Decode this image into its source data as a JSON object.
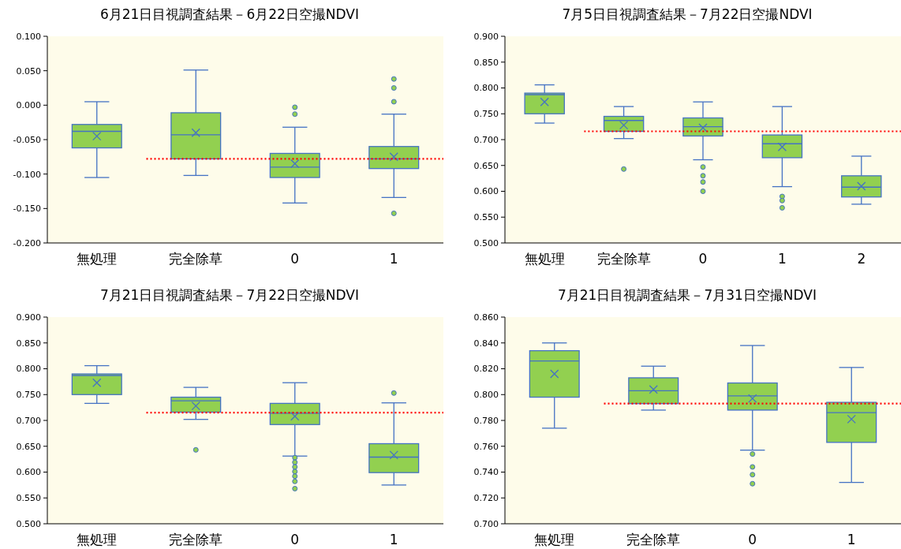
{
  "chart_data": [
    {
      "type": "box",
      "title": "6月21日目視調査結果－6月22日空撮NDVI",
      "categories": [
        "無処理",
        "完全除草",
        "0",
        "1"
      ],
      "ylim": [
        -0.2,
        0.1
      ],
      "yticks": [
        {
          "value": -0.2,
          "label": "-0.200"
        },
        {
          "value": -0.15,
          "label": "-0.150"
        },
        {
          "value": -0.1,
          "label": "-0.100"
        },
        {
          "value": -0.05,
          "label": "-0.050"
        },
        {
          "value": 0,
          "label": "0.000"
        },
        {
          "value": 0.05,
          "label": "0.050"
        },
        {
          "value": 0.1,
          "label": "0.100"
        }
      ],
      "series": [
        {
          "color": "#92d050",
          "boxes": [
            {
              "low": -0.105,
              "q1": -0.062,
              "median": -0.038,
              "q3": -0.028,
              "high": 0.005,
              "mean": -0.045
            },
            {
              "low": -0.102,
              "q1": -0.078,
              "median": -0.043,
              "q3": -0.011,
              "high": 0.051,
              "mean": -0.04
            },
            {
              "low": -0.142,
              "q1": -0.105,
              "median": -0.09,
              "q3": -0.07,
              "high": -0.032,
              "mean": -0.085,
              "outliers": [
                -0.003,
                -0.013
              ]
            },
            {
              "low": -0.134,
              "q1": -0.092,
              "median": -0.078,
              "q3": -0.06,
              "high": -0.013,
              "mean": -0.075,
              "outliers": [
                0.038,
                0.025,
                0.005,
                -0.157
              ]
            }
          ]
        }
      ],
      "ref_lines": [
        {
          "axis": "y",
          "value": -0.078,
          "color": "#ff0000",
          "line_style": "dotted"
        }
      ]
    },
    {
      "type": "box",
      "title": "7月5日目視調査結果－7月22日空撮NDVI",
      "categories": [
        "無処理",
        "完全除草",
        "0",
        "1",
        "2"
      ],
      "ylim": [
        0.5,
        0.9
      ],
      "yticks": [
        {
          "value": 0.5,
          "label": "0.500"
        },
        {
          "value": 0.55,
          "label": "0.550"
        },
        {
          "value": 0.6,
          "label": "0.600"
        },
        {
          "value": 0.65,
          "label": "0.650"
        },
        {
          "value": 0.7,
          "label": "0.700"
        },
        {
          "value": 0.75,
          "label": "0.750"
        },
        {
          "value": 0.8,
          "label": "0.800"
        },
        {
          "value": 0.85,
          "label": "0.850"
        },
        {
          "value": 0.9,
          "label": "0.900"
        }
      ],
      "series": [
        {
          "color": "#92d050",
          "boxes": [
            {
              "low": 0.732,
              "q1": 0.75,
              "median": 0.787,
              "q3": 0.79,
              "high": 0.806,
              "mean": 0.773
            },
            {
              "low": 0.702,
              "q1": 0.716,
              "median": 0.737,
              "q3": 0.745,
              "high": 0.764,
              "mean": 0.728,
              "outliers": [
                0.643
              ]
            },
            {
              "low": 0.661,
              "q1": 0.707,
              "median": 0.725,
              "q3": 0.742,
              "high": 0.773,
              "mean": 0.723,
              "outliers": [
                0.647,
                0.63,
                0.618,
                0.6
              ]
            },
            {
              "low": 0.609,
              "q1": 0.665,
              "median": 0.692,
              "q3": 0.709,
              "high": 0.764,
              "mean": 0.686,
              "outliers": [
                0.59,
                0.582,
                0.568
              ]
            },
            {
              "low": 0.575,
              "q1": 0.589,
              "median": 0.608,
              "q3": 0.63,
              "high": 0.668,
              "mean": 0.61
            }
          ]
        }
      ],
      "ref_lines": [
        {
          "axis": "y",
          "value": 0.716,
          "color": "#ff0000",
          "line_style": "dotted"
        }
      ]
    },
    {
      "type": "box",
      "title": "7月21日目視調査結果－7月22日空撮NDVI",
      "categories": [
        "無処理",
        "完全除草",
        "0",
        "1"
      ],
      "ylim": [
        0.5,
        0.9
      ],
      "yticks": [
        {
          "value": 0.5,
          "label": "0.500"
        },
        {
          "value": 0.55,
          "label": "0.550"
        },
        {
          "value": 0.6,
          "label": "0.600"
        },
        {
          "value": 0.65,
          "label": "0.650"
        },
        {
          "value": 0.7,
          "label": "0.700"
        },
        {
          "value": 0.75,
          "label": "0.750"
        },
        {
          "value": 0.8,
          "label": "0.800"
        },
        {
          "value": 0.85,
          "label": "0.850"
        },
        {
          "value": 0.9,
          "label": "0.900"
        }
      ],
      "series": [
        {
          "color": "#92d050",
          "boxes": [
            {
              "low": 0.733,
              "q1": 0.75,
              "median": 0.787,
              "q3": 0.79,
              "high": 0.806,
              "mean": 0.773
            },
            {
              "low": 0.702,
              "q1": 0.716,
              "median": 0.738,
              "q3": 0.745,
              "high": 0.764,
              "mean": 0.728,
              "outliers": [
                0.643
              ]
            },
            {
              "low": 0.631,
              "q1": 0.692,
              "median": 0.714,
              "q3": 0.733,
              "high": 0.773,
              "mean": 0.708,
              "outliers": [
                0.628,
                0.619,
                0.61,
                0.601,
                0.592,
                0.582,
                0.568
              ]
            },
            {
              "low": 0.575,
              "q1": 0.599,
              "median": 0.629,
              "q3": 0.655,
              "high": 0.734,
              "mean": 0.633,
              "outliers": [
                0.753
              ]
            }
          ]
        }
      ],
      "ref_lines": [
        {
          "axis": "y",
          "value": 0.715,
          "color": "#ff0000",
          "line_style": "dotted"
        }
      ]
    },
    {
      "type": "box",
      "title": "7月21日目視調査結果－7月31日空撮NDVI",
      "categories": [
        "無処理",
        "完全除草",
        "0",
        "1"
      ],
      "ylim": [
        0.7,
        0.86
      ],
      "yticks": [
        {
          "value": 0.7,
          "label": "0.700"
        },
        {
          "value": 0.72,
          "label": "0.720"
        },
        {
          "value": 0.74,
          "label": "0.740"
        },
        {
          "value": 0.76,
          "label": "0.760"
        },
        {
          "value": 0.78,
          "label": "0.780"
        },
        {
          "value": 0.8,
          "label": "0.800"
        },
        {
          "value": 0.82,
          "label": "0.820"
        },
        {
          "value": 0.84,
          "label": "0.840"
        },
        {
          "value": 0.86,
          "label": "0.860"
        }
      ],
      "series": [
        {
          "color": "#92d050",
          "boxes": [
            {
              "low": 0.774,
              "q1": 0.798,
              "median": 0.826,
              "q3": 0.834,
              "high": 0.84,
              "mean": 0.816
            },
            {
              "low": 0.788,
              "q1": 0.793,
              "median": 0.803,
              "q3": 0.813,
              "high": 0.822,
              "mean": 0.804
            },
            {
              "low": 0.757,
              "q1": 0.788,
              "median": 0.799,
              "q3": 0.809,
              "high": 0.838,
              "mean": 0.797,
              "outliers": [
                0.754,
                0.744,
                0.738,
                0.731
              ]
            },
            {
              "low": 0.732,
              "q1": 0.763,
              "median": 0.786,
              "q3": 0.794,
              "high": 0.821,
              "mean": 0.781
            }
          ]
        }
      ],
      "ref_lines": [
        {
          "axis": "y",
          "value": 0.793,
          "color": "#ff0000",
          "line_style": "dotted"
        }
      ]
    }
  ]
}
